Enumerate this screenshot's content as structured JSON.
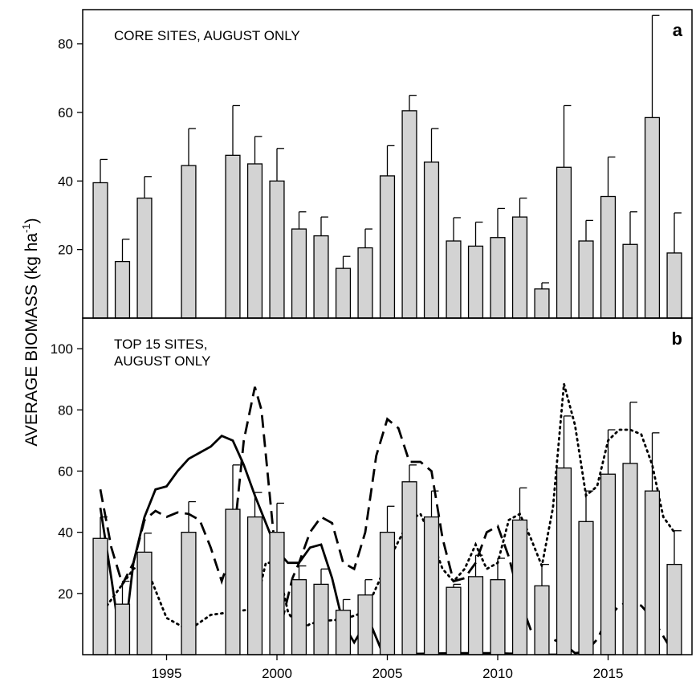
{
  "chart_data": [
    {
      "type": "bar",
      "panel_label": "a",
      "annotation": [
        "CORE SITES, AUGUST ONLY"
      ],
      "ylabel": {
        "text": "AVERAGE BIOMASS (kg ha",
        "superscript": "-1",
        "suffix": ")"
      },
      "x": [
        1992,
        1993,
        1994,
        1996,
        1998,
        1999,
        2000,
        2001,
        2002,
        2003,
        2004,
        2005,
        2006,
        2007,
        2008,
        2009,
        2010,
        2011,
        2012,
        2013,
        2014,
        2015,
        2016,
        2017,
        2018
      ],
      "values": [
        39.5,
        16.5,
        35,
        44.5,
        47.5,
        45,
        40,
        26,
        24,
        14.5,
        20.5,
        41.5,
        60.5,
        45.5,
        22.5,
        21,
        23.5,
        29.5,
        8.5,
        44,
        22.5,
        35.5,
        21.5,
        58.5,
        19
      ],
      "errors": [
        6.8,
        6.5,
        6.3,
        10.8,
        14.5,
        8,
        9.5,
        5,
        5.5,
        3.5,
        5.5,
        8.8,
        4.5,
        9.8,
        6.8,
        7,
        8.5,
        5.5,
        1.8,
        18,
        6,
        11.5,
        9.5,
        29.8,
        11.7
      ],
      "color": "#d3d3d3",
      "xlim": [
        1991.2,
        2018.8
      ],
      "ylim": [
        0,
        90
      ],
      "yticks": [
        20,
        40,
        60,
        80
      ]
    },
    {
      "type": "bar",
      "panel_label": "b",
      "annotation": [
        "TOP 15 SITES,",
        "AUGUST ONLY"
      ],
      "x": [
        1992,
        1993,
        1994,
        1996,
        1998,
        1999,
        2000,
        2001,
        2002,
        2003,
        2004,
        2005,
        2006,
        2007,
        2008,
        2009,
        2010,
        2011,
        2012,
        2013,
        2014,
        2015,
        2016,
        2017,
        2018
      ],
      "values": [
        38,
        16.5,
        33.5,
        40,
        47.5,
        45,
        40,
        24.5,
        23,
        14.5,
        19.5,
        40,
        56.5,
        45,
        22,
        25.5,
        24.5,
        44,
        22.5,
        61,
        43.5,
        59,
        62.5,
        53.5,
        29.5
      ],
      "errors": [
        7,
        7.5,
        6.2,
        10,
        14.5,
        8,
        9.5,
        4.5,
        5,
        3.5,
        5,
        8.5,
        5.5,
        8.5,
        1,
        7,
        7,
        10.5,
        7,
        17,
        10,
        14.5,
        20,
        19,
        11
      ],
      "color": "#d3d3d3",
      "lines": [
        {
          "style": "solid",
          "color": "#000000",
          "x": [
            1992,
            1992.5,
            1993,
            1993.5,
            1994,
            1994.5,
            1995,
            1995.5,
            1996,
            1996.5,
            1997,
            1997.5,
            1998,
            1998.5,
            1999,
            1999.5,
            2000,
            2000.5,
            2001,
            2001.5,
            2002,
            2002.5,
            2003,
            2003.5,
            2004,
            2004.3,
            2004.7,
            2005,
            2005.5,
            2006,
            2008,
            2010,
            2011,
            2011.5,
            2012.2,
            2013
          ],
          "values": [
            48,
            25,
            0,
            30,
            45,
            54,
            55,
            60,
            64,
            66,
            68,
            71.5,
            70,
            62,
            52,
            43,
            34,
            30,
            30,
            35,
            36,
            25,
            10,
            4,
            10,
            9,
            2,
            0,
            null,
            0.2,
            0.5,
            0.5,
            0.2,
            null,
            0,
            0
          ]
        },
        {
          "style": "dashed",
          "color": "#000000",
          "x": [
            1992,
            1992.5,
            1993,
            1993.5,
            1994,
            1994.5,
            1995,
            1995.5,
            1996,
            1996.5,
            1997,
            1997.5,
            1998,
            1998.5,
            1999,
            1999.3,
            1999.7,
            2000,
            2000.3,
            2000.7,
            2001,
            2001.5,
            2002,
            2002.5,
            2003,
            2003.5,
            2004,
            2004.5,
            2005,
            2005.5,
            2006,
            2006.5,
            2007,
            2007.5,
            2008,
            2008.5,
            2009,
            2009.5,
            2010,
            2010.5,
            2011,
            2011.5,
            2012,
            2012.5,
            2013,
            2013.5,
            2014,
            2014.5,
            2015,
            2015.5,
            2016,
            2016.5,
            2017,
            2017.5,
            2018
          ],
          "values": [
            54,
            35,
            23,
            30,
            44,
            47,
            45,
            46.5,
            46,
            44,
            35,
            24,
            35,
            70,
            87.5,
            80,
            50,
            28,
            13,
            25,
            30,
            40,
            45,
            43,
            30,
            28,
            40,
            65,
            77,
            74,
            63,
            63,
            60,
            38,
            24,
            25,
            30,
            40,
            42,
            32,
            18,
            8,
            6,
            5,
            3.5,
            0.5,
            1,
            5,
            12,
            16,
            17.5,
            16,
            12,
            6,
            0
          ]
        },
        {
          "style": "dotted",
          "color": "#000000",
          "x": [
            1992,
            1992.5,
            1993,
            1993.5,
            1994,
            1995,
            1996,
            1997,
            1998,
            1999,
            1999.5,
            2000,
            2000.5,
            2001,
            2001.5,
            2002,
            2003,
            2004,
            2005,
            2006,
            2006.5,
            2007,
            2007.5,
            2008,
            2008.5,
            2009,
            2009.5,
            2010,
            2010.5,
            2011,
            2011.5,
            2012,
            2012.5,
            2013,
            2013.5,
            2014,
            2014.5,
            2015,
            2015.5,
            2016,
            2016.5,
            2017,
            2017.5,
            2018
          ],
          "values": [
            13,
            18,
            23,
            28,
            30,
            12,
            8,
            13,
            14,
            15,
            30,
            30,
            14,
            8,
            10,
            11,
            11.5,
            14,
            30,
            44,
            46,
            38,
            28,
            24,
            28,
            36,
            28,
            30,
            44,
            46,
            38,
            29,
            48,
            88.5,
            75,
            52,
            55,
            70,
            73.5,
            73.5,
            72,
            62,
            45,
            40
          ]
        }
      ],
      "xlim": [
        1991.2,
        2018.8
      ],
      "ylim": [
        0,
        110
      ],
      "yticks": [
        20,
        40,
        60,
        80,
        100
      ],
      "xticks": [
        1995,
        2000,
        2005,
        2010,
        2015
      ]
    }
  ]
}
